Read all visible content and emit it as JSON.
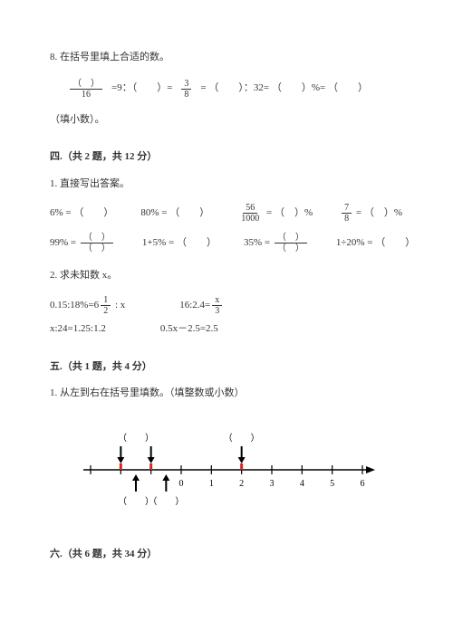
{
  "q8": {
    "prefix": "8.",
    "text": "在括号里填上合适的数。",
    "frac_num": "（　）",
    "frac_den": "16",
    "part_a": "=9：（　　）=",
    "mid_frac_num": "3",
    "mid_frac_den": "8",
    "part_b": "= （　　）：32= （　　）%= （　　）",
    "note": "（填小数）。"
  },
  "sec4": {
    "header": "四.（共 2 题，共 12 分）",
    "q1": "1. 直接写出答案。",
    "row1": {
      "a": "6% = （　　）",
      "b": "80% = （　　）",
      "c_pre": "",
      "c_frac_num": "56",
      "c_frac_den": "1000",
      "c_post": " = （　）%",
      "d_frac_num": "7",
      "d_frac_den": "8",
      "d_post": " = （　）%"
    },
    "row2": {
      "a_pre": "99% =",
      "a_frac_num": "（　）",
      "a_frac_den": "（　）",
      "b": "1+5% = （　　）",
      "c_pre": "35% =",
      "c_frac_num": "（　）",
      "c_frac_den": "（　）",
      "d": "1÷20% = （　　）"
    },
    "q2": "2. 求未知数 x。",
    "eq1a_pre": "0.15:18%=6",
    "eq1a_frac_num": "1",
    "eq1a_frac_den": "2",
    "eq1a_post": " : x",
    "eq1b_pre": "16:2.4=",
    "eq1b_frac_num": "x",
    "eq1b_frac_den": "3",
    "eq2a": "x:24=1.25:1.2",
    "eq2b": "0.5x－2.5=2.5"
  },
  "sec5": {
    "header": "五.（共 1 题，共 4 分）",
    "q1": "1. 从左到右在括号里填数。（填整数或小数）",
    "numline": {
      "ticks": [
        -3,
        -2,
        -1,
        0,
        1,
        2,
        3,
        4,
        5,
        6
      ],
      "tick_labels_show": [
        0,
        1,
        2,
        3,
        4,
        5,
        6
      ],
      "red_top": [
        -2,
        -1,
        2
      ],
      "bottom_arrows": [
        -1.5,
        -0.5
      ],
      "top_blank_x": [
        -1.5,
        2
      ],
      "bottom_blank_x": [
        -1.5,
        -0.5
      ],
      "blank_label": "（　　）",
      "colors": {
        "line": "#000000",
        "red": "#d62424"
      }
    }
  },
  "sec6": {
    "header": "六.（共 6 题，共 34 分）"
  }
}
